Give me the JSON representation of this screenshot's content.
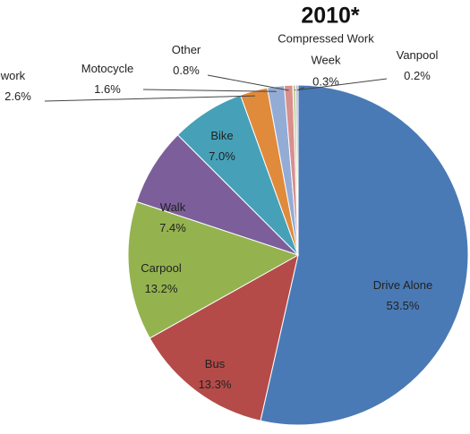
{
  "chart_data": {
    "type": "pie",
    "title": "2010*",
    "categories": [
      "Drive Alone",
      "Bus",
      "Carpool",
      "Walk",
      "Bike",
      "Telework",
      "Motocycle",
      "Other",
      "Compressed Work Week",
      "Vanpool"
    ],
    "values": [
      53.5,
      13.3,
      13.2,
      7.4,
      7.0,
      2.6,
      1.6,
      0.8,
      0.3,
      0.2
    ],
    "value_labels": [
      "53.5%",
      "13.3%",
      "13.2%",
      "7.4%",
      "7.0%",
      "2.6%",
      "1.6%",
      "0.8%",
      "0.3%",
      "0.2%"
    ],
    "colors": [
      "#4a7ab5",
      "#b44b49",
      "#94b34f",
      "#7c5f9a",
      "#46a0b8",
      "#e08a3c",
      "#93acd6",
      "#d88f8d",
      "#c3d69b",
      "#b3a2c8"
    ]
  }
}
